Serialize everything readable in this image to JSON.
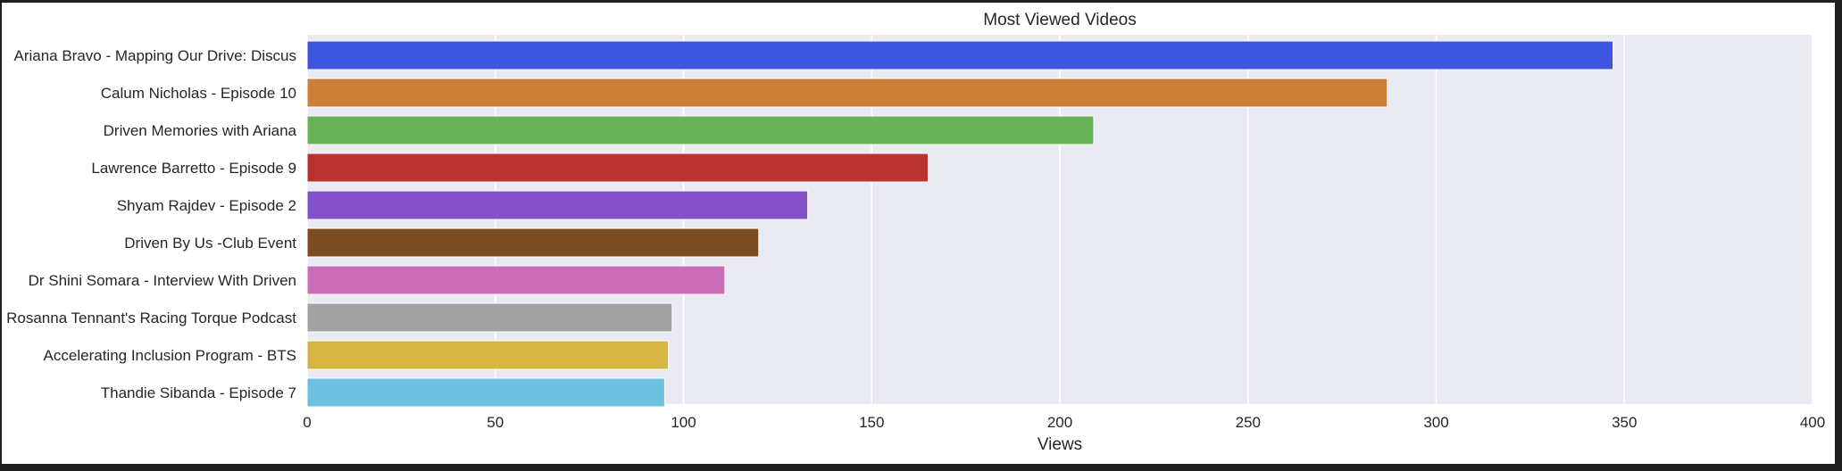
{
  "chart_data": {
    "type": "bar",
    "orientation": "horizontal",
    "title": "Most Viewed Videos",
    "xlabel": "Views",
    "ylabel": "",
    "xlim": [
      0,
      400
    ],
    "xticks": [
      0,
      50,
      100,
      150,
      200,
      250,
      300,
      350,
      400
    ],
    "grid": true,
    "legend": "none",
    "categories": [
      "Ariana Bravo - Mapping Our Drive: Discus",
      "Calum Nicholas - Episode 10",
      "Driven Memories with Ariana",
      "Lawrence Barretto - Episode 9",
      "Shyam Rajdev - Episode 2",
      "Driven By Us -Club Event",
      "Dr Shini Somara  - Interview With Driven",
      "Rosanna Tennant's Racing Torque Podcast ",
      "Accelerating Inclusion Program - BTS",
      "Thandie Sibanda - Episode 7"
    ],
    "values": [
      347,
      287,
      209,
      165,
      133,
      120,
      111,
      97,
      96,
      95
    ],
    "colors": [
      "#3d55e0",
      "#cc8037",
      "#67b257",
      "#b83330",
      "#8250c8",
      "#7b4b22",
      "#cb6cb8",
      "#a2a2a2",
      "#d5b641",
      "#6cc1df"
    ],
    "plot_background": "#eaeaf2",
    "grid_color": "#ffffff"
  }
}
